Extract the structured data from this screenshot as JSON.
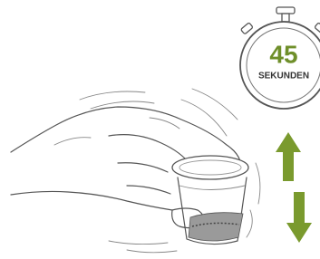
{
  "stopwatch": {
    "value": "45",
    "unit": "SEKUNDEN"
  }
}
